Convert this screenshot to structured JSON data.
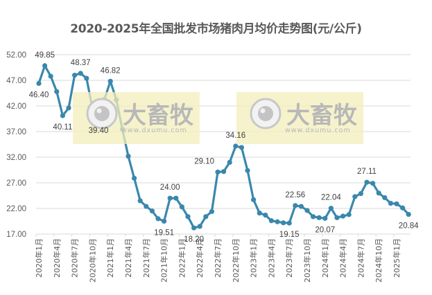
{
  "title": "2020-2025年全国批发市场猪肉月均价走势图(元/公斤)",
  "colors": {
    "line": "#3a87ad",
    "grid": "#d9d9d9",
    "watermark_bg": "#f3eebb"
  },
  "watermark": {
    "brand": "大畜牧",
    "url": "www.dxumu.com"
  },
  "chart_data": {
    "type": "line",
    "title": "2020-2025年全国批发市场猪肉月均价走势图(元/公斤)",
    "xlabel": "",
    "ylabel": "元/公斤",
    "ylim": [
      17,
      52
    ],
    "yticks": [
      "52.00",
      "47.00",
      "42.00",
      "37.00",
      "32.00",
      "27.00",
      "22.00",
      "17.00"
    ],
    "grid": true,
    "legend": "none",
    "x_tick_labels": [
      "2020年1月",
      "2020年4月",
      "2020年7月",
      "2020年10月",
      "2021年1月",
      "2021年4月",
      "2021年7月",
      "2021年10月",
      "2022年1月",
      "2022年4月",
      "2022年7月",
      "2022年10月",
      "2023年1月",
      "2023年4月",
      "2023年7月",
      "2023年10月",
      "2024年1月",
      "2024年4月",
      "2024年7月",
      "2024年10月",
      "2025年1月"
    ],
    "x": [
      "2020-01",
      "2020-02",
      "2020-03",
      "2020-04",
      "2020-05",
      "2020-06",
      "2020-07",
      "2020-08",
      "2020-09",
      "2020-10",
      "2020-11",
      "2020-12",
      "2021-01",
      "2021-02",
      "2021-03",
      "2021-04",
      "2021-05",
      "2021-06",
      "2021-07",
      "2021-08",
      "2021-09",
      "2021-10",
      "2021-11",
      "2021-12",
      "2022-01",
      "2022-02",
      "2022-03",
      "2022-04",
      "2022-05",
      "2022-06",
      "2022-07",
      "2022-08",
      "2022-09",
      "2022-10",
      "2022-11",
      "2022-12",
      "2023-01",
      "2023-02",
      "2023-03",
      "2023-04",
      "2023-05",
      "2023-06",
      "2023-07",
      "2023-08",
      "2023-09",
      "2023-10",
      "2023-11",
      "2023-12",
      "2024-01",
      "2024-02",
      "2024-03",
      "2024-04",
      "2024-05",
      "2024-06",
      "2024-07",
      "2024-08",
      "2024-09",
      "2024-10",
      "2024-11",
      "2024-12",
      "2025-01",
      "2025-02",
      "2025-03"
    ],
    "series": [
      {
        "name": "猪肉月均价",
        "values": [
          46.4,
          49.85,
          47.8,
          44.8,
          40.11,
          41.6,
          48.0,
          48.37,
          47.4,
          41.5,
          39.4,
          43.3,
          46.82,
          43.2,
          37.5,
          32.2,
          27.9,
          23.5,
          22.4,
          21.5,
          20.0,
          19.51,
          24.0,
          24.0,
          22.3,
          20.4,
          18.2,
          18.5,
          20.4,
          21.4,
          29.1,
          29.2,
          31.0,
          34.16,
          33.9,
          29.4,
          23.7,
          21.1,
          20.7,
          19.6,
          19.4,
          19.2,
          19.15,
          22.56,
          22.4,
          21.6,
          20.4,
          20.2,
          20.07,
          22.04,
          20.2,
          20.5,
          20.8,
          24.3,
          24.9,
          27.11,
          26.9,
          25.0,
          24.1,
          23.0,
          22.9,
          22.1,
          20.84
        ]
      }
    ],
    "annotations": [
      {
        "index": 0,
        "label": "46.40",
        "pos": "below"
      },
      {
        "index": 1,
        "label": "49.85",
        "pos": "above"
      },
      {
        "index": 4,
        "label": "40.11",
        "pos": "below"
      },
      {
        "index": 7,
        "label": "48.37",
        "pos": "above"
      },
      {
        "index": 10,
        "label": "39.40",
        "pos": "below"
      },
      {
        "index": 12,
        "label": "46.82",
        "pos": "above"
      },
      {
        "index": 21,
        "label": "19.51",
        "pos": "below"
      },
      {
        "index": 22,
        "label": "24.00",
        "pos": "above"
      },
      {
        "index": 26,
        "label": "18.20",
        "pos": "below"
      },
      {
        "index": 30,
        "label": "29.10",
        "pos": "left"
      },
      {
        "index": 33,
        "label": "34.16",
        "pos": "above"
      },
      {
        "index": 42,
        "label": "19.15",
        "pos": "below"
      },
      {
        "index": 43,
        "label": "22.56",
        "pos": "above"
      },
      {
        "index": 48,
        "label": "20.07",
        "pos": "below"
      },
      {
        "index": 49,
        "label": "22.04",
        "pos": "above"
      },
      {
        "index": 55,
        "label": "27.11",
        "pos": "above"
      },
      {
        "index": 62,
        "label": "20.84",
        "pos": "below"
      }
    ]
  }
}
